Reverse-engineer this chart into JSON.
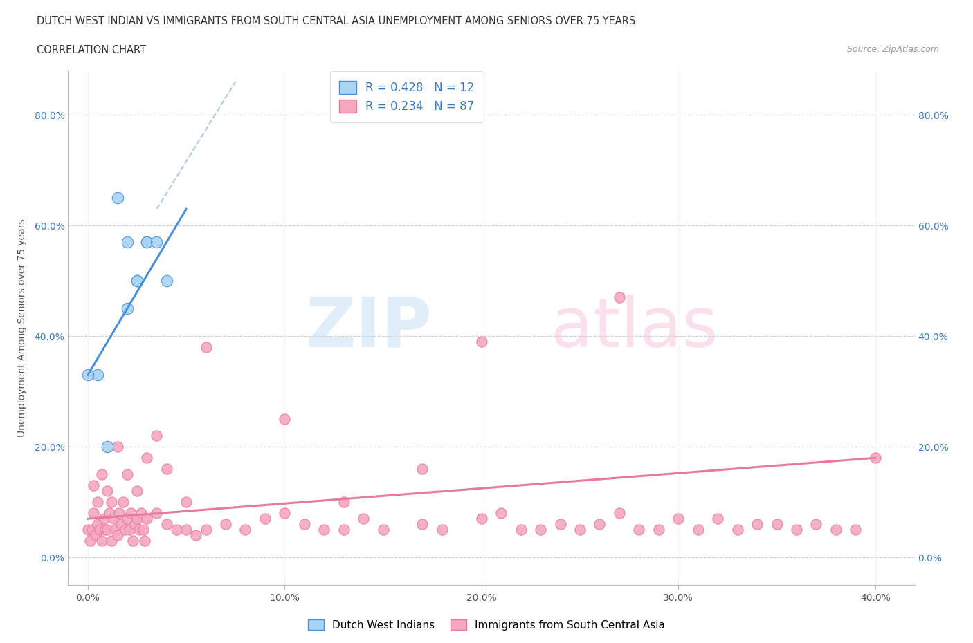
{
  "title_line1": "DUTCH WEST INDIAN VS IMMIGRANTS FROM SOUTH CENTRAL ASIA UNEMPLOYMENT AMONG SENIORS OVER 75 YEARS",
  "title_line2": "CORRELATION CHART",
  "source_text": "Source: ZipAtlas.com",
  "ylabel": "Unemployment Among Seniors over 75 years",
  "legend1_label": "R = 0.428   N = 12",
  "legend2_label": "R = 0.234   N = 87",
  "legend_bottom_label1": "Dutch West Indians",
  "legend_bottom_label2": "Immigrants from South Central Asia",
  "color_blue": "#a8d4f5",
  "color_pink": "#f5a8c0",
  "color_trend_blue": "#4a90d9",
  "color_trend_pink": "#e87a9f",
  "color_gray_dash": "#b0c8e0",
  "blue_scatter_x": [
    0.5,
    1.0,
    2.0,
    2.5,
    2.5,
    3.0,
    3.0,
    3.5,
    4.0,
    0.0,
    2.0,
    1.5
  ],
  "blue_scatter_y": [
    33.0,
    20.0,
    57.0,
    50.0,
    50.0,
    57.0,
    57.0,
    57.0,
    50.0,
    33.0,
    45.0,
    65.0
  ],
  "pink_scatter_x": [
    0.0,
    0.1,
    0.2,
    0.3,
    0.4,
    0.5,
    0.6,
    0.7,
    0.8,
    0.9,
    1.0,
    1.1,
    1.2,
    1.3,
    1.4,
    1.5,
    1.6,
    1.7,
    1.8,
    1.9,
    2.0,
    2.1,
    2.2,
    2.3,
    2.4,
    2.5,
    2.6,
    2.7,
    2.8,
    2.9,
    3.0,
    3.5,
    4.0,
    4.5,
    5.0,
    5.5,
    6.0,
    7.0,
    8.0,
    9.0,
    10.0,
    11.0,
    12.0,
    13.0,
    14.0,
    15.0,
    17.0,
    18.0,
    20.0,
    21.0,
    22.0,
    23.0,
    24.0,
    25.0,
    26.0,
    27.0,
    28.0,
    29.0,
    30.0,
    31.0,
    32.0,
    33.0,
    34.0,
    35.0,
    36.0,
    37.0,
    38.0,
    39.0,
    40.0,
    0.3,
    0.5,
    0.7,
    1.0,
    1.2,
    1.5,
    2.0,
    2.5,
    3.0,
    3.5,
    4.0,
    5.0,
    6.0,
    10.0,
    13.0,
    17.0,
    20.0,
    27.0
  ],
  "pink_scatter_y": [
    5.0,
    3.0,
    5.0,
    8.0,
    4.0,
    6.0,
    5.0,
    3.0,
    7.0,
    5.0,
    5.0,
    8.0,
    3.0,
    7.0,
    5.0,
    4.0,
    8.0,
    6.0,
    10.0,
    5.0,
    7.0,
    5.0,
    8.0,
    3.0,
    6.0,
    7.0,
    5.0,
    8.0,
    5.0,
    3.0,
    7.0,
    8.0,
    6.0,
    5.0,
    5.0,
    4.0,
    5.0,
    6.0,
    5.0,
    7.0,
    8.0,
    6.0,
    5.0,
    5.0,
    7.0,
    5.0,
    6.0,
    5.0,
    7.0,
    8.0,
    5.0,
    5.0,
    6.0,
    5.0,
    6.0,
    8.0,
    5.0,
    5.0,
    7.0,
    5.0,
    7.0,
    5.0,
    6.0,
    6.0,
    5.0,
    6.0,
    5.0,
    5.0,
    18.0,
    13.0,
    10.0,
    15.0,
    12.0,
    10.0,
    20.0,
    15.0,
    12.0,
    18.0,
    22.0,
    16.0,
    10.0,
    38.0,
    25.0,
    10.0,
    16.0,
    39.0,
    47.0
  ],
  "xlim": [
    -1.0,
    42.0
  ],
  "ylim": [
    -5.0,
    88.0
  ],
  "xticks": [
    0.0,
    10.0,
    20.0,
    30.0,
    40.0
  ],
  "yticks": [
    0.0,
    20.0,
    40.0,
    60.0,
    80.0
  ],
  "blue_trend_x0": 0.0,
  "blue_trend_x1": 5.0,
  "blue_trend_y0": 33.0,
  "blue_trend_y1": 63.0,
  "gray_dash_x0": 3.5,
  "gray_dash_x1": 7.5,
  "gray_dash_y0": 63.0,
  "gray_dash_y1": 86.0,
  "pink_trend_x0": 0.0,
  "pink_trend_x1": 40.0,
  "pink_trend_y0": 7.0,
  "pink_trend_y1": 18.0
}
